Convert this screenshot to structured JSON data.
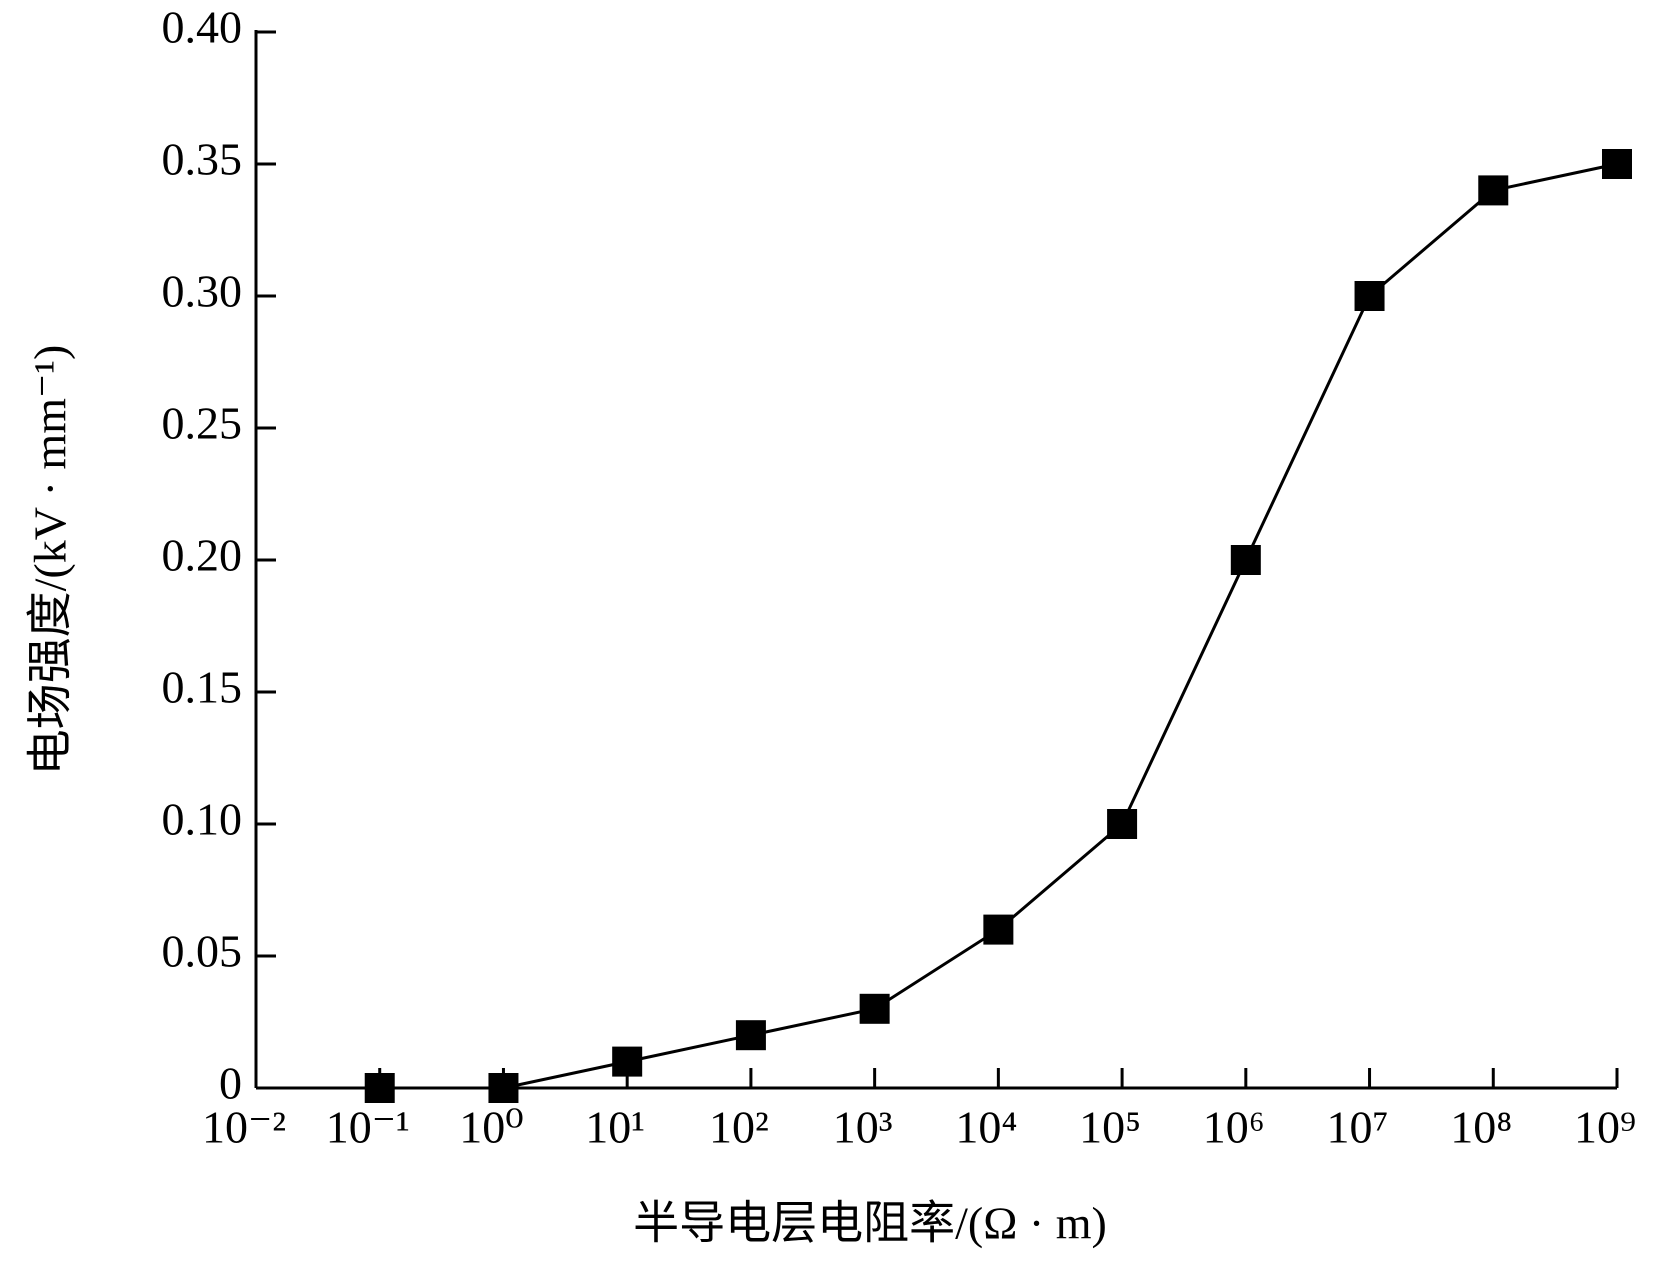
{
  "chart_data": {
    "type": "line",
    "x_label": "半导电层电阻率/(Ω · m)",
    "y_label": "电场强度/(kV · mm⁻¹)",
    "x_scale": "log",
    "x": [
      0.1,
      1,
      10,
      100,
      1000,
      10000,
      100000,
      1000000,
      10000000,
      100000000,
      1000000000
    ],
    "series": [
      {
        "color": "#000000",
        "marker": "square",
        "values": [
          0,
          0,
          0.01,
          0.02,
          0.03,
          0.06,
          0.1,
          0.2,
          0.3,
          0.34,
          0.35
        ]
      }
    ],
    "xlim": [
      0.01,
      1000000000
    ],
    "xticks": [
      {
        "value": 0.01,
        "label": "10⁻²"
      },
      {
        "value": 0.1,
        "label": "10⁻¹"
      },
      {
        "value": 1,
        "label": "10⁰"
      },
      {
        "value": 10,
        "label": "10¹"
      },
      {
        "value": 100,
        "label": "10²"
      },
      {
        "value": 1000,
        "label": "10³"
      },
      {
        "value": 10000,
        "label": "10⁴"
      },
      {
        "value": 100000,
        "label": "10⁵"
      },
      {
        "value": 1000000,
        "label": "10⁶"
      },
      {
        "value": 10000000,
        "label": "10⁷"
      },
      {
        "value": 100000000,
        "label": "10⁸"
      },
      {
        "value": 1000000000,
        "label": "10⁹"
      }
    ],
    "ylim": [
      0,
      0.4
    ],
    "yticks": [
      0,
      0.05,
      {
        "value": 0.1,
        "label": "0.10"
      },
      0.15,
      {
        "value": 0.2,
        "label": "0.20"
      },
      0.25,
      {
        "value": 0.3,
        "label": "0.30"
      },
      0.35,
      {
        "value": 0.4,
        "label": "0.40"
      }
    ],
    "grid": false
  }
}
